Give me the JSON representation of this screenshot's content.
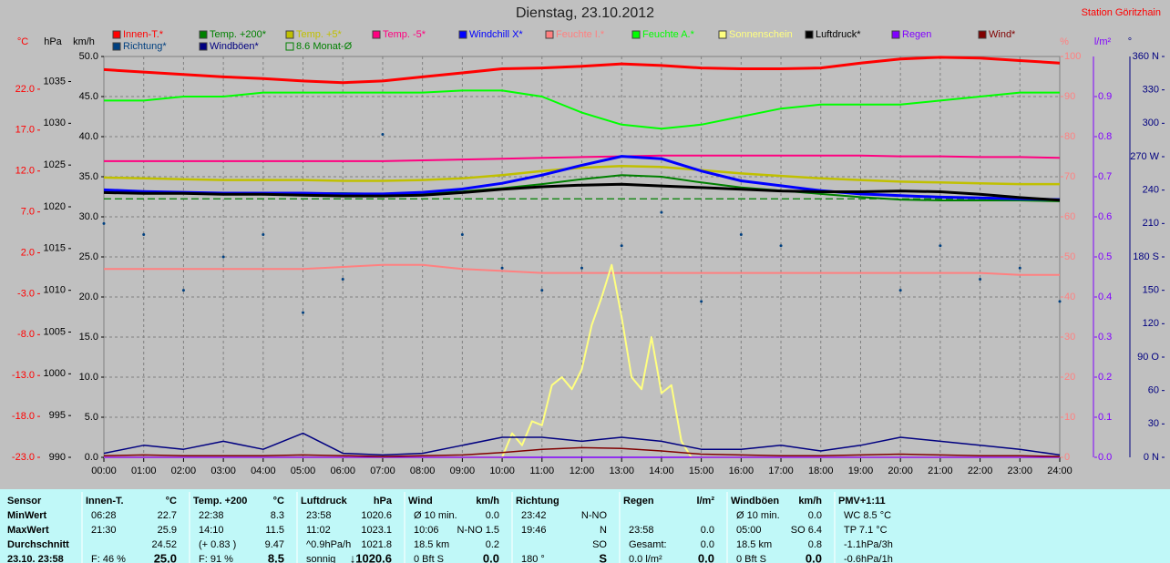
{
  "chart_data": {
    "type": "line",
    "title": "Dienstag, 23.10.2012",
    "station": "Station Göritzhain",
    "xlim": [
      0,
      24
    ],
    "xticks": [
      {
        "value": 0,
        "label": "00:00"
      },
      {
        "value": 1,
        "label": "01:00"
      },
      {
        "value": 2,
        "label": "02:00"
      },
      {
        "value": 3,
        "label": "03:00"
      },
      {
        "value": 4,
        "label": "04:00"
      },
      {
        "value": 5,
        "label": "05:00"
      },
      {
        "value": 6,
        "label": "06:00"
      },
      {
        "value": 7,
        "label": "07:00"
      },
      {
        "value": 8,
        "label": "08:00"
      },
      {
        "value": 9,
        "label": "09:00"
      },
      {
        "value": 10,
        "label": "10:00"
      },
      {
        "value": 11,
        "label": "11:00"
      },
      {
        "value": 12,
        "label": "12:00"
      },
      {
        "value": 13,
        "label": "13:00"
      },
      {
        "value": 14,
        "label": "14:00"
      },
      {
        "value": 15,
        "label": "15:00"
      },
      {
        "value": 16,
        "label": "16:00"
      },
      {
        "value": 17,
        "label": "17:00"
      },
      {
        "value": 18,
        "label": "18:00"
      },
      {
        "value": 19,
        "label": "19:00"
      },
      {
        "value": 20,
        "label": "20:00"
      },
      {
        "value": 21,
        "label": "21:00"
      },
      {
        "value": 22,
        "label": "22:00"
      },
      {
        "value": 23,
        "label": "23:00"
      },
      {
        "value": 24,
        "label": "24:00"
      }
    ],
    "x": [
      0,
      1,
      2,
      3,
      4,
      5,
      6,
      7,
      8,
      9,
      10,
      11,
      12,
      13,
      14,
      15,
      16,
      17,
      18,
      19,
      20,
      21,
      22,
      23,
      24
    ],
    "grid": true,
    "axes": [
      {
        "label": "°C",
        "color": "#ff0000",
        "ylim": [
          -23,
          26
        ],
        "yticks": [
          {
            "value": -23,
            "label": "-23.0"
          },
          {
            "value": -18,
            "label": "-18.0"
          },
          {
            "value": -13,
            "label": "-13.0"
          },
          {
            "value": -8,
            "label": "-8.0"
          },
          {
            "value": -3,
            "label": "-3.0"
          },
          {
            "value": 2,
            "label": "2.0"
          },
          {
            "value": 7,
            "label": "7.0"
          },
          {
            "value": 12,
            "label": "12.0"
          },
          {
            "value": 17,
            "label": "17.0"
          },
          {
            "value": 22,
            "label": "22.0"
          }
        ]
      },
      {
        "label": "hPa",
        "color": "#000000",
        "ylim": [
          990,
          1038
        ],
        "yticks": [
          990,
          995,
          1000,
          1005,
          1010,
          1015,
          1020,
          1025,
          1030,
          1035
        ]
      },
      {
        "label": "km/h",
        "color": "#000000",
        "ylim": [
          0,
          50
        ],
        "yticks": [
          {
            "value": 0,
            "label": "0.0"
          },
          {
            "value": 5,
            "label": "5.0"
          },
          {
            "value": 10,
            "label": "10.0"
          },
          {
            "value": 15,
            "label": "15.0"
          },
          {
            "value": 20,
            "label": "20.0"
          },
          {
            "value": 25,
            "label": "25.0"
          },
          {
            "value": 30,
            "label": "30.0"
          },
          {
            "value": 35,
            "label": "35.0"
          },
          {
            "value": 40,
            "label": "40.0"
          },
          {
            "value": 45,
            "label": "45.0"
          },
          {
            "value": 50,
            "label": "50.0"
          }
        ]
      },
      {
        "label": "%",
        "color": "#ff8080",
        "ylim": [
          0,
          100
        ],
        "yticks": [
          0,
          10,
          20,
          30,
          40,
          50,
          60,
          70,
          80,
          90,
          100
        ]
      },
      {
        "label": "l/m²",
        "color": "#8000ff",
        "ylim": [
          0,
          1
        ],
        "yticks": [
          {
            "value": 0,
            "label": "0.0"
          },
          {
            "value": 0.1,
            "label": "0.1"
          },
          {
            "value": 0.2,
            "label": "0.2"
          },
          {
            "value": 0.3,
            "label": "0.3"
          },
          {
            "value": 0.4,
            "label": "0.4"
          },
          {
            "value": 0.5,
            "label": "0.5"
          },
          {
            "value": 0.6,
            "label": "0.6"
          },
          {
            "value": 0.7,
            "label": "0.7"
          },
          {
            "value": 0.8,
            "label": "0.8"
          },
          {
            "value": 0.9,
            "label": "0.9"
          }
        ]
      },
      {
        "label": "°",
        "color": "#000080",
        "ylim": [
          0,
          360
        ],
        "yticks": [
          {
            "value": 0,
            "label": "0  N"
          },
          {
            "value": 30,
            "label": "30"
          },
          {
            "value": 60,
            "label": "60"
          },
          {
            "value": 90,
            "label": "90  O"
          },
          {
            "value": 120,
            "label": "120"
          },
          {
            "value": 150,
            "label": "150"
          },
          {
            "value": 180,
            "label": "180 S"
          },
          {
            "value": 210,
            "label": "210"
          },
          {
            "value": 240,
            "label": "240"
          },
          {
            "value": 270,
            "label": "270 W"
          },
          {
            "value": 300,
            "label": "300"
          },
          {
            "value": 330,
            "label": "330"
          },
          {
            "value": 360,
            "label": "360 N"
          }
        ]
      }
    ],
    "series": [
      {
        "name": "Innen-T.*",
        "color": "#ff0000",
        "axis": 0,
        "values": [
          24.4,
          24.1,
          23.8,
          23.5,
          23.3,
          23.0,
          22.8,
          23.0,
          23.5,
          24.0,
          24.5,
          24.6,
          24.8,
          25.1,
          24.9,
          24.6,
          24.5,
          24.5,
          24.6,
          25.2,
          25.7,
          25.9,
          25.8,
          25.5,
          25.2
        ]
      },
      {
        "name": "Temp. +200*",
        "color": "#008000",
        "axis": 0,
        "values": [
          9.5,
          9.4,
          9.4,
          9.3,
          9.3,
          9.3,
          9.3,
          9.2,
          9.3,
          9.5,
          9.9,
          10.4,
          11.0,
          11.5,
          11.3,
          10.6,
          10.0,
          9.6,
          9.2,
          8.8,
          8.5,
          8.4,
          8.4,
          8.4,
          8.3
        ]
      },
      {
        "name": "Temp. +5*",
        "color": "#c0c000",
        "axis": 0,
        "values": [
          11.2,
          11.1,
          11.0,
          10.9,
          10.9,
          10.9,
          10.8,
          10.8,
          10.9,
          11.1,
          11.5,
          12.0,
          12.4,
          12.6,
          12.5,
          12.1,
          11.7,
          11.4,
          11.1,
          10.9,
          10.7,
          10.6,
          10.5,
          10.4,
          10.4
        ]
      },
      {
        "name": "Temp. -5*",
        "color": "#ff0080",
        "axis": 0,
        "values": [
          13.2,
          13.2,
          13.2,
          13.2,
          13.2,
          13.2,
          13.2,
          13.2,
          13.3,
          13.4,
          13.5,
          13.6,
          13.7,
          13.8,
          13.9,
          13.9,
          13.9,
          13.9,
          13.9,
          13.9,
          13.8,
          13.8,
          13.7,
          13.7,
          13.6
        ]
      },
      {
        "name": "Windchill X*",
        "color": "#0000ff",
        "axis": 0,
        "values": [
          9.7,
          9.5,
          9.4,
          9.3,
          9.3,
          9.3,
          9.2,
          9.2,
          9.4,
          9.8,
          10.5,
          11.5,
          12.7,
          13.8,
          13.5,
          12.0,
          10.8,
          10.2,
          9.6,
          9.2,
          9.0,
          8.8,
          8.7,
          8.6,
          8.5
        ]
      },
      {
        "name": "Feuchte I.*",
        "color": "#ff8080",
        "axis": 3,
        "values": [
          47,
          47,
          47,
          47,
          47,
          47,
          47.5,
          48,
          48,
          47,
          46.5,
          46,
          46,
          46,
          46,
          46,
          46,
          46,
          46,
          46,
          46,
          46,
          46,
          45.5,
          45.5
        ]
      },
      {
        "name": "Feuchte A.*",
        "color": "#00ff00",
        "axis": 3,
        "values": [
          89,
          89,
          90,
          90,
          91,
          91,
          91,
          91,
          91,
          91.5,
          91.5,
          90,
          86,
          83,
          82,
          83,
          85,
          87,
          88,
          88,
          88,
          89,
          90,
          91,
          91
        ]
      },
      {
        "name": "Sonnenschein",
        "color": "#ffff80",
        "axis": 3,
        "x": [
          0,
          9,
          10,
          10.25,
          10.5,
          10.75,
          11,
          11.25,
          11.5,
          11.75,
          12,
          12.25,
          12.5,
          12.75,
          13,
          13.25,
          13.5,
          13.75,
          14,
          14.25,
          14.5,
          14.75,
          15,
          24
        ],
        "values": [
          0,
          0,
          0,
          6,
          3,
          9,
          8,
          18,
          20,
          17,
          22,
          33,
          40,
          48,
          35,
          20,
          17,
          30,
          16,
          18,
          4,
          0,
          0,
          0
        ]
      },
      {
        "name": "Luftdruck*",
        "color": "#000000",
        "axis": 1,
        "values": [
          1021.7,
          1021.6,
          1021.6,
          1021.5,
          1021.5,
          1021.4,
          1021.3,
          1021.3,
          1021.4,
          1021.7,
          1022.1,
          1022.4,
          1022.6,
          1022.7,
          1022.5,
          1022.3,
          1022.1,
          1021.9,
          1021.8,
          1021.8,
          1021.9,
          1021.8,
          1021.5,
          1021.1,
          1020.8
        ]
      },
      {
        "name": "Regen",
        "color": "#8000ff",
        "axis": 4,
        "values": [
          0,
          0,
          0,
          0,
          0,
          0,
          0,
          0,
          0,
          0,
          0,
          0,
          0,
          0,
          0,
          0,
          0,
          0,
          0,
          0,
          0,
          0,
          0,
          0,
          0
        ]
      },
      {
        "name": "Wind*",
        "color": "#800000",
        "axis": 2,
        "values": [
          0.2,
          0.3,
          0.2,
          0.2,
          0.2,
          0.3,
          0.2,
          0.1,
          0.2,
          0.3,
          0.6,
          1.0,
          1.2,
          1.1,
          0.8,
          0.4,
          0.3,
          0.2,
          0.2,
          0.3,
          0.4,
          0.3,
          0.2,
          0.2,
          0.1
        ]
      },
      {
        "name": "Richtung*",
        "color": "#004080",
        "axis": 5,
        "type": "scatter",
        "values": [
          210,
          200,
          150,
          180,
          200,
          130,
          160,
          290,
          null,
          200,
          170,
          150,
          170,
          190,
          220,
          140,
          200,
          190,
          null,
          null,
          150,
          190,
          160,
          170,
          140
        ]
      },
      {
        "name": "Windböen*",
        "color": "#000080",
        "axis": 2,
        "values": [
          0.5,
          1.5,
          1.0,
          2.0,
          1.0,
          3.0,
          0.5,
          0.3,
          0.5,
          1.5,
          2.5,
          2.5,
          2.0,
          2.5,
          2.0,
          1.0,
          1.0,
          1.5,
          0.8,
          1.5,
          2.5,
          2.0,
          1.5,
          1.0,
          0.3
        ]
      }
    ],
    "reference": {
      "name": "8.6 Monat-Ø",
      "value": 8.6,
      "axis": 0,
      "color": "#008000"
    }
  },
  "table": {
    "sensor": "Sensor",
    "row_labels": [
      "MinWert",
      "MaxWert",
      "Durchschnitt",
      "23.10.  23:58"
    ],
    "blocks": [
      {
        "title": "Innen-T.",
        "unit": "°C",
        "cells": [
          {
            "l": "06:28",
            "r": "22.7"
          },
          {
            "l": "21:30",
            "r": "25.9"
          },
          {
            "r": "24.52"
          },
          {
            "l": "F: 46 %",
            "r": "25.0"
          }
        ]
      },
      {
        "title": "Temp. +200",
        "unit": "°C",
        "cells": [
          {
            "l": "22:38",
            "r": "8.3"
          },
          {
            "l": "14:10",
            "r": "11.5"
          },
          {
            "l": "(+ 0.83 )",
            "r": "9.47"
          },
          {
            "l": "F: 91 %",
            "r": "8.5"
          }
        ]
      },
      {
        "title": "Luftdruck",
        "unit": "hPa",
        "cells": [
          {
            "l": "23:58",
            "r": "1020.6"
          },
          {
            "l": "11:02",
            "r": "1023.1"
          },
          {
            "l": "^0.9hPa/h",
            "r": "1021.8"
          },
          {
            "l": "sonnig",
            "r": "↓1020.6"
          }
        ]
      },
      {
        "title": "Wind",
        "unit": "km/h",
        "cells": [
          {
            "l": "Ø 10 min.",
            "r": "0.0"
          },
          {
            "l": "10:06",
            "r": "N-NO 1.5"
          },
          {
            "l": "18.5 km",
            "r": "0.2"
          },
          {
            "l": "0 Bft S",
            "r": "0.0"
          }
        ]
      },
      {
        "title": "Richtung",
        "cells": [
          {
            "l": "23:42",
            "r": "N-NO"
          },
          {
            "l": "19:46",
            "r": "N"
          },
          {
            "r": "SO"
          },
          {
            "l": "180 °",
            "r": "S"
          }
        ]
      },
      {
        "title": "Regen",
        "unit": "l/m²",
        "cells": [
          {},
          {
            "l": "23:58",
            "r": "0.0"
          },
          {
            "l": "Gesamt:",
            "r": "0.0"
          },
          {
            "l": "0.0 l/m²",
            "r": "0.0"
          }
        ]
      },
      {
        "title": "Windböen",
        "unit": "km/h",
        "cells": [
          {
            "l": "Ø 10 min.",
            "r": "0.0"
          },
          {
            "l": "05:00",
            "r": "SO 6.4"
          },
          {
            "l": "18.5 km",
            "r": "0.8"
          },
          {
            "l": "0 Bft S",
            "r": "0.0"
          }
        ]
      },
      {
        "title": "PMV+1:11",
        "cells": [
          {
            "l": "WC 8.5 °C"
          },
          {
            "l": "TP 7.1 °C"
          },
          {
            "l": "-1.1hPa/3h"
          },
          {
            "l": "-0.6hPa/1h"
          }
        ]
      }
    ]
  }
}
